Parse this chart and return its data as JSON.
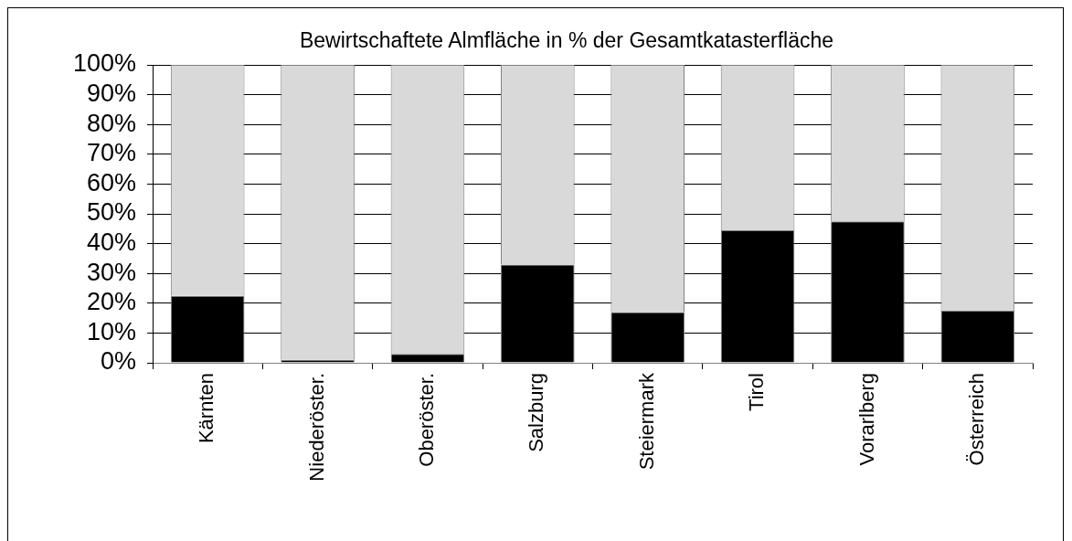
{
  "chart_data": {
    "type": "bar",
    "title": "Bewirtschaftete Almfläche in % der Gesamtkatasterfläche",
    "categories": [
      "Kärnten",
      "Niederöster.",
      "Oberöster.",
      "Salzburg",
      "Steiermark",
      "Tirol",
      "Vorarlberg",
      "Österreich"
    ],
    "stacked": true,
    "series": [
      {
        "color": "#000000",
        "values": [
          22.5,
          1,
          3,
          33,
          17,
          44.5,
          47.5,
          17.5
        ]
      },
      {
        "color": "#d9d9d9",
        "values": [
          77.5,
          99,
          97,
          67,
          83,
          55.5,
          52.5,
          82.5
        ]
      }
    ],
    "ylim": [
      0,
      100
    ],
    "yticks": [
      {
        "value": 0,
        "label": "0%"
      },
      {
        "value": 10,
        "label": "10%"
      },
      {
        "value": 20,
        "label": "20%"
      },
      {
        "value": 30,
        "label": "30%"
      },
      {
        "value": 40,
        "label": "40%"
      },
      {
        "value": 50,
        "label": "50%"
      },
      {
        "value": 60,
        "label": "60%"
      },
      {
        "value": 70,
        "label": "70%"
      },
      {
        "value": 80,
        "label": "80%"
      },
      {
        "value": 90,
        "label": "90%"
      },
      {
        "value": 100,
        "label": "100%"
      }
    ],
    "grid": "y",
    "legend": false
  }
}
